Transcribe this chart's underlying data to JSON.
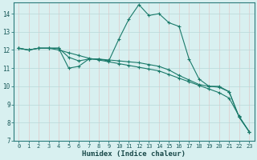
{
  "xlabel": "Humidex (Indice chaleur)",
  "bg_color": "#d8f0f0",
  "line_color": "#1a7a6a",
  "grid_color_v": "#e0c8c8",
  "grid_color_h": "#b8d8d8",
  "xlim": [
    -0.5,
    23.5
  ],
  "ylim": [
    7,
    14.6
  ],
  "yticks": [
    7,
    8,
    9,
    10,
    11,
    12,
    13,
    14
  ],
  "xticks": [
    0,
    1,
    2,
    3,
    4,
    5,
    6,
    7,
    8,
    9,
    10,
    11,
    12,
    13,
    14,
    15,
    16,
    17,
    18,
    19,
    20,
    21,
    22,
    23
  ],
  "series": [
    {
      "x": [
        0,
        1,
        2,
        3,
        4,
        5,
        6,
        7,
        8,
        9,
        10,
        11,
        12,
        13,
        14,
        15,
        16,
        17,
        18,
        19,
        20,
        21,
        22,
        23
      ],
      "y": [
        12.1,
        12.0,
        12.1,
        12.1,
        12.1,
        11.0,
        11.1,
        11.5,
        11.5,
        11.4,
        12.6,
        13.7,
        14.5,
        13.9,
        14.0,
        13.5,
        13.3,
        11.5,
        10.4,
        10.0,
        10.0,
        9.7,
        8.3,
        7.5
      ]
    },
    {
      "x": [
        0,
        1,
        2,
        3,
        4,
        5,
        6,
        7,
        8,
        9,
        10,
        11,
        12,
        13,
        14,
        15,
        16,
        17,
        18,
        19,
        20,
        21,
        22,
        23
      ],
      "y": [
        12.1,
        12.0,
        12.1,
        12.1,
        12.1,
        11.6,
        11.4,
        11.5,
        11.5,
        11.45,
        11.4,
        11.35,
        11.3,
        11.2,
        11.1,
        10.9,
        10.6,
        10.35,
        10.1,
        10.0,
        9.95,
        9.7,
        8.3,
        7.5
      ]
    },
    {
      "x": [
        0,
        1,
        2,
        3,
        4,
        5,
        6,
        7,
        8,
        9,
        10,
        11,
        12,
        13,
        14,
        15,
        16,
        17,
        18,
        19,
        20,
        21,
        22,
        23
      ],
      "y": [
        12.1,
        12.0,
        12.1,
        12.1,
        12.0,
        11.85,
        11.7,
        11.55,
        11.45,
        11.35,
        11.25,
        11.15,
        11.05,
        10.95,
        10.85,
        10.65,
        10.45,
        10.25,
        10.05,
        9.85,
        9.65,
        9.35,
        8.35,
        7.5
      ]
    }
  ]
}
